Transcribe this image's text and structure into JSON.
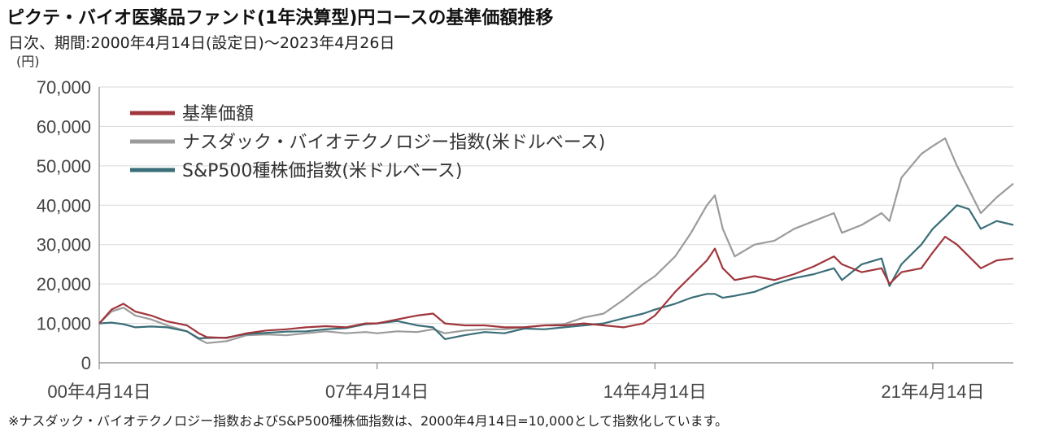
{
  "header": {
    "title": "ピクテ・バイオ医薬品ファンド(1年決算型)円コースの基準価額推移",
    "subtitle": "日次、期間:2000年4月14日(設定日)〜2023年4月26日",
    "unit": "(円)"
  },
  "footnote": "※ナスダック・バイオテクノロジー指数およびS&P500種株価指数は、2000年4月14日=10,000として指数化しています。",
  "chart_data": {
    "type": "line",
    "x_ticks": [
      "00年4月14日",
      "07年4月14日",
      "14年4月14日",
      "21年4月14日"
    ],
    "y_ticks": [
      "0",
      "10,000",
      "20,000",
      "30,000",
      "40,000",
      "50,000",
      "60,000",
      "70,000"
    ],
    "ylim": [
      0,
      70000
    ],
    "grid": true,
    "legend_position": "top-left",
    "series": [
      {
        "name": "基準価額",
        "color": "#a0363c",
        "points": [
          [
            2000.29,
            10000
          ],
          [
            2000.6,
            13500
          ],
          [
            2000.9,
            15000
          ],
          [
            2001.2,
            13000
          ],
          [
            2001.6,
            12000
          ],
          [
            2002.0,
            10500
          ],
          [
            2002.5,
            9500
          ],
          [
            2002.8,
            7500
          ],
          [
            2003.0,
            6500
          ],
          [
            2003.5,
            6300
          ],
          [
            2004.0,
            7500
          ],
          [
            2004.5,
            8200
          ],
          [
            2005.0,
            8500
          ],
          [
            2005.5,
            9000
          ],
          [
            2006.0,
            9300
          ],
          [
            2006.5,
            9000
          ],
          [
            2007.0,
            10000
          ],
          [
            2007.29,
            10000
          ],
          [
            2007.8,
            11000
          ],
          [
            2008.3,
            12000
          ],
          [
            2008.7,
            12500
          ],
          [
            2009.0,
            10000
          ],
          [
            2009.5,
            9500
          ],
          [
            2010.0,
            9500
          ],
          [
            2010.5,
            9000
          ],
          [
            2011.0,
            9000
          ],
          [
            2011.5,
            9500
          ],
          [
            2012.0,
            9500
          ],
          [
            2012.5,
            10000
          ],
          [
            2013.0,
            9500
          ],
          [
            2013.5,
            9000
          ],
          [
            2014.0,
            10000
          ],
          [
            2014.29,
            12000
          ],
          [
            2014.8,
            18000
          ],
          [
            2015.2,
            22000
          ],
          [
            2015.6,
            26000
          ],
          [
            2015.8,
            29000
          ],
          [
            2016.0,
            24000
          ],
          [
            2016.3,
            21000
          ],
          [
            2016.8,
            22000
          ],
          [
            2017.3,
            21000
          ],
          [
            2017.8,
            22500
          ],
          [
            2018.3,
            24500
          ],
          [
            2018.8,
            27000
          ],
          [
            2019.0,
            25000
          ],
          [
            2019.5,
            23000
          ],
          [
            2020.0,
            24000
          ],
          [
            2020.2,
            20000
          ],
          [
            2020.5,
            23000
          ],
          [
            2021.0,
            24000
          ],
          [
            2021.29,
            28000
          ],
          [
            2021.6,
            32000
          ],
          [
            2021.9,
            30000
          ],
          [
            2022.2,
            27000
          ],
          [
            2022.5,
            24000
          ],
          [
            2022.9,
            26000
          ],
          [
            2023.32,
            26500
          ]
        ]
      },
      {
        "name": "ナスダック・バイオテクノロジー指数(米ドルベース)",
        "color": "#9b9b9b",
        "points": [
          [
            2000.29,
            10000
          ],
          [
            2000.6,
            13000
          ],
          [
            2000.9,
            14000
          ],
          [
            2001.2,
            12000
          ],
          [
            2001.6,
            11000
          ],
          [
            2002.0,
            9500
          ],
          [
            2002.5,
            8000
          ],
          [
            2002.8,
            6000
          ],
          [
            2003.0,
            5000
          ],
          [
            2003.5,
            5500
          ],
          [
            2004.0,
            7000
          ],
          [
            2004.5,
            7200
          ],
          [
            2005.0,
            7000
          ],
          [
            2005.5,
            7500
          ],
          [
            2006.0,
            8000
          ],
          [
            2006.5,
            7500
          ],
          [
            2007.0,
            7800
          ],
          [
            2007.29,
            7500
          ],
          [
            2007.8,
            8000
          ],
          [
            2008.3,
            7800
          ],
          [
            2008.7,
            8500
          ],
          [
            2009.0,
            7500
          ],
          [
            2009.5,
            8200
          ],
          [
            2010.0,
            8500
          ],
          [
            2010.5,
            8500
          ],
          [
            2011.0,
            9000
          ],
          [
            2011.5,
            9500
          ],
          [
            2012.0,
            9800
          ],
          [
            2012.5,
            11500
          ],
          [
            2013.0,
            12500
          ],
          [
            2013.5,
            16000
          ],
          [
            2014.0,
            20000
          ],
          [
            2014.29,
            22000
          ],
          [
            2014.8,
            27000
          ],
          [
            2015.2,
            33000
          ],
          [
            2015.6,
            40000
          ],
          [
            2015.8,
            42500
          ],
          [
            2016.0,
            34000
          ],
          [
            2016.3,
            27000
          ],
          [
            2016.8,
            30000
          ],
          [
            2017.3,
            31000
          ],
          [
            2017.8,
            34000
          ],
          [
            2018.3,
            36000
          ],
          [
            2018.8,
            38000
          ],
          [
            2019.0,
            33000
          ],
          [
            2019.5,
            35000
          ],
          [
            2020.0,
            38000
          ],
          [
            2020.2,
            36000
          ],
          [
            2020.5,
            47000
          ],
          [
            2021.0,
            53000
          ],
          [
            2021.29,
            55000
          ],
          [
            2021.6,
            57000
          ],
          [
            2021.9,
            50000
          ],
          [
            2022.2,
            44000
          ],
          [
            2022.5,
            38000
          ],
          [
            2022.9,
            42000
          ],
          [
            2023.32,
            45500
          ]
        ]
      },
      {
        "name": "S&P500種株価指数(米ドルベース)",
        "color": "#3a6e78",
        "points": [
          [
            2000.29,
            10000
          ],
          [
            2000.6,
            10200
          ],
          [
            2000.9,
            9800
          ],
          [
            2001.2,
            9000
          ],
          [
            2001.6,
            9200
          ],
          [
            2002.0,
            9000
          ],
          [
            2002.5,
            8000
          ],
          [
            2002.8,
            6200
          ],
          [
            2003.0,
            6300
          ],
          [
            2003.5,
            6400
          ],
          [
            2004.0,
            7300
          ],
          [
            2004.5,
            7600
          ],
          [
            2005.0,
            7900
          ],
          [
            2005.5,
            8000
          ],
          [
            2006.0,
            8500
          ],
          [
            2006.5,
            8800
          ],
          [
            2007.0,
            9800
          ],
          [
            2007.29,
            10000
          ],
          [
            2007.8,
            10600
          ],
          [
            2008.3,
            9500
          ],
          [
            2008.7,
            9000
          ],
          [
            2009.0,
            6000
          ],
          [
            2009.5,
            7000
          ],
          [
            2010.0,
            7800
          ],
          [
            2010.5,
            7500
          ],
          [
            2011.0,
            8700
          ],
          [
            2011.5,
            8500
          ],
          [
            2012.0,
            9000
          ],
          [
            2012.5,
            9500
          ],
          [
            2013.0,
            10000
          ],
          [
            2013.5,
            11300
          ],
          [
            2014.0,
            12500
          ],
          [
            2014.29,
            13500
          ],
          [
            2014.8,
            15000
          ],
          [
            2015.2,
            16500
          ],
          [
            2015.6,
            17500
          ],
          [
            2015.8,
            17500
          ],
          [
            2016.0,
            16500
          ],
          [
            2016.3,
            17000
          ],
          [
            2016.8,
            18000
          ],
          [
            2017.3,
            20000
          ],
          [
            2017.8,
            21500
          ],
          [
            2018.3,
            22500
          ],
          [
            2018.8,
            24000
          ],
          [
            2019.0,
            21000
          ],
          [
            2019.5,
            25000
          ],
          [
            2020.0,
            26500
          ],
          [
            2020.2,
            19500
          ],
          [
            2020.5,
            25000
          ],
          [
            2021.0,
            30000
          ],
          [
            2021.29,
            34000
          ],
          [
            2021.6,
            37000
          ],
          [
            2021.9,
            40000
          ],
          [
            2022.2,
            39000
          ],
          [
            2022.5,
            34000
          ],
          [
            2022.9,
            36000
          ],
          [
            2023.32,
            35000
          ]
        ]
      }
    ]
  }
}
